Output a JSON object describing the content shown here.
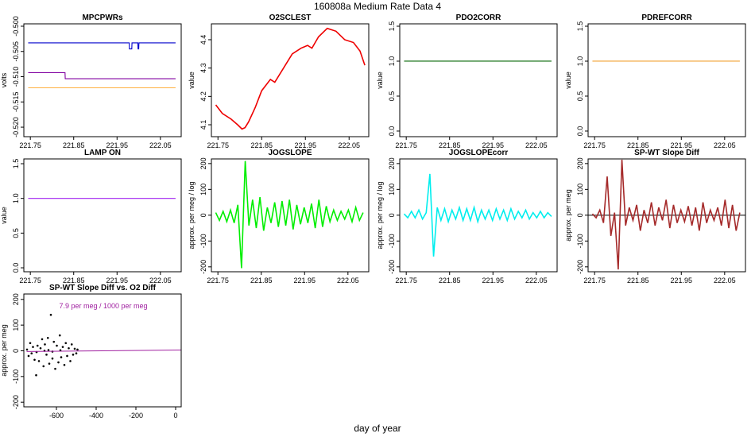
{
  "page": {
    "title": "160808a   Medium Rate Data 4",
    "xlabel": "day of year"
  },
  "chart_data": [
    {
      "type": "line",
      "title": "MPCPWRs",
      "ylabel": "volts",
      "x": [
        221.745,
        221.83,
        221.8305,
        221.978,
        221.9785,
        221.984,
        221.9845,
        221.998,
        221.9985,
        222.0,
        222.0005,
        222.085
      ],
      "xlim": [
        221.735,
        222.098
      ],
      "xticks": [
        221.75,
        221.85,
        221.95,
        222.05
      ],
      "ylim": [
        -0.52188,
        -0.49953
      ],
      "yticks": [
        {
          "value": -0.52,
          "label": "-0.520"
        },
        {
          "value": -0.515,
          "label": "-0.515"
        },
        {
          "value": -0.51,
          "label": "-0.510"
        },
        {
          "value": -0.505,
          "label": "-0.505"
        },
        {
          "value": -0.5,
          "label": "-0.500"
        }
      ],
      "series": [
        {
          "color": "#0000cc",
          "values": [
            -0.5033,
            -0.5033,
            -0.5033,
            -0.5033,
            -0.5045,
            -0.5045,
            -0.5033,
            -0.5033,
            -0.5045,
            -0.5045,
            -0.5033,
            -0.5033
          ]
        },
        {
          "color": "#8000a0",
          "values": [
            -0.5092,
            -0.5092,
            -0.5104,
            -0.5104,
            -0.5104,
            -0.5104,
            -0.5104,
            -0.5104,
            -0.5104,
            -0.5104,
            -0.5104,
            -0.5104
          ]
        },
        {
          "color": "#ffb040",
          "values": [
            -0.5122,
            -0.5122,
            -0.5122,
            -0.5122,
            -0.5122,
            -0.5122,
            -0.5122,
            -0.5122,
            -0.5122,
            -0.5122,
            -0.5122,
            -0.5122
          ]
        }
      ]
    },
    {
      "type": "line",
      "title": "O2SCLEST",
      "ylabel": "value",
      "x": [
        221.745,
        221.76,
        221.78,
        221.795,
        221.805,
        221.812,
        221.82,
        221.835,
        221.85,
        221.87,
        221.88,
        221.9,
        221.92,
        221.94,
        221.955,
        221.965,
        221.98,
        222.0,
        222.02,
        222.04,
        222.06,
        222.075,
        222.086
      ],
      "xlim": [
        221.735,
        222.095
      ],
      "xticks": [
        221.75,
        221.85,
        221.95,
        222.05
      ],
      "ylim": [
        4.058,
        4.456
      ],
      "yticks": [
        4.1,
        4.2,
        4.3,
        4.4
      ],
      "series": [
        {
          "color": "#ee0000",
          "values": [
            4.17,
            4.14,
            4.12,
            4.1,
            4.085,
            4.09,
            4.11,
            4.16,
            4.22,
            4.26,
            4.25,
            4.3,
            4.35,
            4.37,
            4.38,
            4.37,
            4.41,
            4.44,
            4.43,
            4.4,
            4.39,
            4.36,
            4.31
          ]
        }
      ]
    },
    {
      "type": "line",
      "title": "PDO2CORR",
      "ylabel": "value",
      "x": [
        221.745,
        222.085
      ],
      "xlim": [
        221.735,
        222.098
      ],
      "xticks": [
        221.75,
        221.85,
        221.95,
        222.05
      ],
      "ylim": [
        -0.08,
        1.534
      ],
      "yticks": [
        {
          "value": 0,
          "label": "0.0"
        },
        0.5,
        {
          "value": 1,
          "label": "1.0"
        },
        1.5
      ],
      "series": [
        {
          "color": "#006400",
          "values": [
            1,
            1
          ]
        }
      ]
    },
    {
      "type": "line",
      "title": "PDREFCORR",
      "ylabel": "value",
      "x": [
        221.745,
        222.085
      ],
      "xlim": [
        221.735,
        222.098
      ],
      "xticks": [
        221.75,
        221.85,
        221.95,
        222.05
      ],
      "ylim": [
        -0.08,
        1.534
      ],
      "yticks": [
        {
          "value": 0,
          "label": "0.0"
        },
        0.5,
        {
          "value": 1,
          "label": "1.0"
        },
        1.5
      ],
      "series": [
        {
          "color": "#f0a030",
          "values": [
            1,
            1
          ]
        }
      ]
    },
    {
      "type": "line",
      "title": "LAMP ON",
      "ylabel": "value",
      "x": [
        221.745,
        222.085
      ],
      "xlim": [
        221.735,
        222.098
      ],
      "xticks": [
        221.75,
        221.85,
        221.95,
        222.05
      ],
      "ylim": [
        -0.057,
        1.569
      ],
      "yticks": [
        {
          "value": 0,
          "label": "0.0"
        },
        0.5,
        {
          "value": 1,
          "label": "1.0"
        },
        1.5
      ],
      "series": [
        {
          "color": "#a020f0",
          "values": [
            1,
            1
          ]
        }
      ]
    },
    {
      "type": "line",
      "title": "JOGSLOPE",
      "ylabel": "approx. per meg / log",
      "x": [
        221.745,
        221.7535,
        221.762,
        221.7705,
        221.779,
        221.7875,
        221.796,
        221.8045,
        221.813,
        221.8215,
        221.83,
        221.8385,
        221.847,
        221.8555,
        221.864,
        221.8725,
        221.881,
        221.8895,
        221.898,
        221.9065,
        221.915,
        221.9235,
        221.932,
        221.9405,
        221.949,
        221.9575,
        221.966,
        221.9745,
        221.983,
        221.9915,
        222.0,
        222.0085,
        222.017,
        222.0255,
        222.034,
        222.0425,
        222.051,
        222.0595,
        222.068,
        222.0765,
        222.085
      ],
      "xlim": [
        221.735,
        222.098
      ],
      "xticks": [
        221.75,
        221.85,
        221.95,
        222.05
      ],
      "ylim": [
        -219,
        218
      ],
      "yticks": [
        -200,
        -100,
        0,
        100,
        200
      ],
      "series": [
        {
          "color": "#00ee00",
          "values": [
            10,
            -20,
            15,
            -25,
            20,
            -30,
            40,
            -205,
            210,
            -40,
            60,
            -50,
            70,
            -60,
            30,
            -30,
            50,
            -45,
            55,
            -40,
            60,
            -55,
            40,
            -35,
            30,
            -30,
            45,
            -50,
            60,
            -45,
            35,
            -25,
            20,
            -20,
            15,
            -15,
            20,
            -25,
            30,
            -20,
            10
          ]
        }
      ]
    },
    {
      "type": "line",
      "title": "JOGSLOPEcorr",
      "ylabel": "approx. per meg / log",
      "x": [
        221.745,
        221.7535,
        221.762,
        221.7705,
        221.779,
        221.7875,
        221.796,
        221.8045,
        221.813,
        221.8215,
        221.83,
        221.8385,
        221.847,
        221.8555,
        221.864,
        221.8725,
        221.881,
        221.8895,
        221.898,
        221.9065,
        221.915,
        221.9235,
        221.932,
        221.9405,
        221.949,
        221.9575,
        221.966,
        221.9745,
        221.983,
        221.9915,
        222.0,
        222.0085,
        222.017,
        222.0255,
        222.034,
        222.0425,
        222.051,
        222.0595,
        222.068,
        222.0765,
        222.085
      ],
      "xlim": [
        221.735,
        222.098
      ],
      "xticks": [
        221.75,
        221.85,
        221.95,
        222.05
      ],
      "ylim": [
        -219,
        218
      ],
      "yticks": [
        -200,
        -100,
        0,
        100,
        200
      ],
      "series": [
        {
          "color": "#00eeee",
          "values": [
            5,
            -10,
            15,
            -10,
            20,
            -15,
            10,
            160,
            -160,
            30,
            -20,
            25,
            -25,
            20,
            -15,
            30,
            -20,
            25,
            -20,
            30,
            -25,
            20,
            -15,
            20,
            -20,
            25,
            -15,
            20,
            -20,
            25,
            -15,
            15,
            -10,
            20,
            -15,
            10,
            -10,
            15,
            -10,
            10,
            -5
          ]
        }
      ]
    },
    {
      "type": "line",
      "title": "SP-WT Slope Diff",
      "ylabel": "approx. per meg",
      "hline": 0,
      "x": [
        221.745,
        221.7535,
        221.762,
        221.7705,
        221.779,
        221.7875,
        221.796,
        221.8045,
        221.813,
        221.8215,
        221.83,
        221.8385,
        221.847,
        221.8555,
        221.864,
        221.8725,
        221.881,
        221.8895,
        221.898,
        221.9065,
        221.915,
        221.9235,
        221.932,
        221.9405,
        221.949,
        221.9575,
        221.966,
        221.9745,
        221.983,
        221.9915,
        222.0,
        222.0085,
        222.017,
        222.0255,
        222.034,
        222.0425,
        222.051,
        222.0595,
        222.068,
        222.0765,
        222.085
      ],
      "xlim": [
        221.735,
        222.098
      ],
      "xticks": [
        221.75,
        221.85,
        221.95,
        222.05
      ],
      "ylim": [
        -219,
        218
      ],
      "yticks": [
        -200,
        -100,
        0,
        100,
        200
      ],
      "series": [
        {
          "color": "#a52a2a",
          "values": [
            5,
            -10,
            20,
            -30,
            150,
            -80,
            10,
            -210,
            215,
            -40,
            30,
            -20,
            40,
            -60,
            20,
            -30,
            50,
            -40,
            30,
            -20,
            60,
            -50,
            40,
            -30,
            20,
            -25,
            35,
            -40,
            30,
            -60,
            50,
            -30,
            20,
            -20,
            30,
            -40,
            60,
            -50,
            40,
            -60,
            10
          ]
        }
      ]
    },
    {
      "type": "scatter",
      "title": "SP-WT Slope Diff vs. O2 Diff",
      "ylabel": "approx. per meg",
      "annotation": "7.9 per meg / 1000 per meg",
      "annotation_color": "#a020a0",
      "x": [
        -748,
        -740,
        -732,
        -725,
        -718,
        -710,
        -702,
        -695,
        -688,
        -680,
        -672,
        -665,
        -658,
        -650,
        -643,
        -636,
        -628,
        -620,
        -613,
        -606,
        -598,
        -590,
        -583,
        -576,
        -568,
        -560,
        -553,
        -546,
        -538,
        -530,
        -523,
        -516,
        -508,
        -500,
        -494,
        -700,
        -660,
        -640,
        -620,
        -580
      ],
      "values": [
        5,
        -20,
        30,
        -10,
        15,
        -35,
        -95,
        20,
        -40,
        10,
        45,
        -60,
        25,
        -15,
        50,
        -50,
        140,
        -30,
        35,
        -70,
        20,
        -45,
        60,
        -25,
        15,
        -55,
        30,
        -20,
        10,
        -40,
        25,
        -15,
        8,
        -10,
        5,
        -5,
        0,
        3,
        -3,
        2
      ],
      "color": "#000000",
      "fit_x": [
        -750,
        28
      ],
      "fit_values": [
        -2.9,
        3.2
      ],
      "fit_color": "#a020a0",
      "xlim": [
        -764,
        28
      ],
      "xticks": [
        -600,
        -400,
        -200,
        0
      ],
      "ylim": [
        -218,
        221
      ],
      "yticks": [
        -200,
        -100,
        0,
        100,
        200
      ]
    }
  ]
}
